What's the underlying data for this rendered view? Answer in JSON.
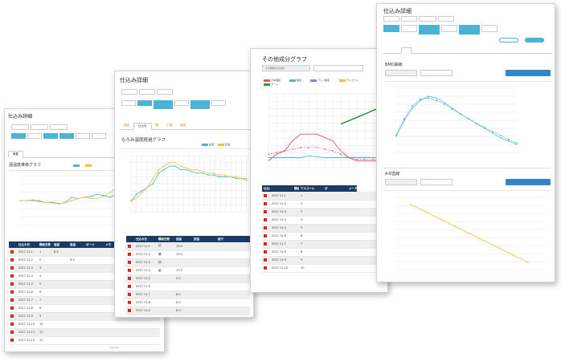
{
  "page_title": "仕込み詳細",
  "screen1": {
    "title": "仕込み詳細",
    "buttons": [
      "",
      "",
      "",
      "",
      "",
      "",
      ""
    ],
    "tabs": [
      "概要",
      "",
      "",
      "",
      ""
    ],
    "chart_title": "酒温度推移グラフ",
    "legend": [
      "",
      ""
    ],
    "table_headers": [
      "",
      "仕込み日",
      "醪経日数",
      "酒温",
      "品温",
      "ボーメ",
      "メモ"
    ],
    "rows": [
      [
        "",
        "2017.11.1",
        "1",
        "6.5",
        "",
        "",
        ""
      ],
      [
        "",
        "2017.11.2",
        "2",
        "",
        "6.5",
        "",
        ""
      ],
      [
        "",
        "2017.11.3",
        "3",
        "",
        "",
        "",
        ""
      ],
      [
        "",
        "2017.11.4",
        "4",
        "",
        "",
        "",
        ""
      ],
      [
        "",
        "2017.11.5",
        "5",
        "",
        "",
        "",
        ""
      ],
      [
        "",
        "2017.11.6",
        "6",
        "",
        "",
        "",
        ""
      ],
      [
        "",
        "2017.11.7",
        "7",
        "",
        "",
        "",
        ""
      ],
      [
        "",
        "2017.11.8",
        "8",
        "",
        "",
        "",
        ""
      ],
      [
        "",
        "2017.11.9",
        "9",
        "",
        "",
        "",
        ""
      ],
      [
        "",
        "2017.11.10",
        "10",
        "",
        "",
        "",
        ""
      ],
      [
        "",
        "2017.11.11",
        "11",
        "",
        "",
        "",
        ""
      ],
      [
        "",
        "2017.11.12",
        "12",
        "",
        "",
        "",
        ""
      ]
    ],
    "footer": "Copyright"
  },
  "screen2": {
    "title": "仕込み詳細",
    "tabs": [
      "経過",
      "仕込み",
      "醪",
      "上槽",
      "製成"
    ],
    "chart_title": "もろみ温度経過グラフ",
    "legend": [
      "品温",
      "室温"
    ],
    "table_headers": [
      "",
      "仕込み日",
      "醪経日数",
      "品温",
      "室温",
      "留子"
    ],
    "rows": [
      [
        "",
        "2017.11.1",
        "初",
        "13.0",
        "",
        ""
      ],
      [
        "",
        "2017.11.2",
        "踊",
        "13.0",
        "",
        ""
      ],
      [
        "",
        "2017.11.3",
        "仲",
        "",
        "",
        ""
      ],
      [
        "",
        "2017.11.4",
        "留",
        "13.5",
        "",
        ""
      ],
      [
        "",
        "2017.11.5",
        "",
        "9.0",
        "",
        ""
      ],
      [
        "",
        "2017.11.6",
        "",
        "",
        "",
        ""
      ],
      [
        "",
        "2017.11.7",
        "",
        "8.5",
        "",
        ""
      ],
      [
        "",
        "2017.11.8",
        "",
        "8.0",
        "",
        ""
      ],
      [
        "",
        "2017.11.9",
        "",
        "8.0",
        "",
        ""
      ]
    ]
  },
  "screen3": {
    "title": "その他成分グラフ",
    "select_label": "その他成分の切替",
    "select_value": "",
    "legend": [
      "日本酒度",
      "酸度",
      "アミノ酸度",
      "アルコール",
      "ボーメ"
    ],
    "table_headers": [
      "仕込み日",
      "",
      "醪経日数",
      "アルコール",
      "ボ",
      "メーター"
    ],
    "rows": [
      [
        "",
        "2017.11.1",
        "",
        "1",
        "",
        "",
        ""
      ],
      [
        "",
        "2017.11.2",
        "",
        "2",
        "",
        "",
        ""
      ],
      [
        "",
        "2017.11.3",
        "",
        "3",
        "",
        "",
        ""
      ],
      [
        "",
        "2017.11.4",
        "",
        "4",
        "",
        "",
        ""
      ],
      [
        "",
        "2017.11.5",
        "",
        "5",
        "",
        "",
        ""
      ],
      [
        "",
        "2017.11.6",
        "",
        "6",
        "",
        "",
        ""
      ],
      [
        "",
        "2017.11.7",
        "",
        "7",
        "",
        "",
        ""
      ],
      [
        "",
        "2017.11.8",
        "",
        "8",
        "",
        "",
        ""
      ],
      [
        "",
        "2017.11.9",
        "",
        "9",
        "",
        "",
        ""
      ],
      [
        "",
        "2017.11.10",
        "",
        "10",
        "",
        "",
        ""
      ]
    ]
  },
  "screen4": {
    "title": "仕込み詳細",
    "section1": "BMD曲線",
    "section2": "A-B直線",
    "action_btn": "",
    "select1": "",
    "select2": ""
  },
  "chart_data": [
    {
      "type": "line",
      "title": "酒温度推移グラフ",
      "series": [
        {
          "values": [
            6,
            6,
            6,
            5.8,
            5.5,
            5.6,
            5.3,
            5.5,
            6.8,
            6.5,
            6.8,
            7,
            7.5,
            7.2,
            6.8,
            7.5,
            8,
            8.5,
            8,
            7.5,
            6.5,
            5.5
          ]
        },
        {
          "values": [
            6,
            6,
            6.2,
            6,
            5.5,
            5.4,
            5.2,
            5.5,
            6,
            6.5,
            6.8,
            6.5,
            6.5,
            7,
            8,
            9,
            9.5,
            8.5,
            8,
            7,
            6,
            5
          ]
        }
      ]
    },
    {
      "type": "line",
      "title": "もろみ温度経過グラフ",
      "series": [
        {
          "name": "品温",
          "values": [
            3,
            5,
            6,
            7,
            8,
            11,
            12,
            13,
            13,
            12,
            12,
            11.5,
            11,
            11,
            10.5,
            10.5,
            10,
            10,
            10,
            9.5,
            9.5,
            9
          ]
        },
        {
          "name": "室温",
          "values": [
            3,
            4,
            5.5,
            7,
            9.5,
            12,
            13,
            14,
            14,
            13,
            12.5,
            12,
            12,
            11.5,
            11,
            11,
            10.5,
            10.5,
            10,
            10,
            9.5,
            9.5
          ]
        }
      ]
    },
    {
      "type": "line",
      "title": "その他成分グラフ",
      "series": [
        {
          "name": "日本酒度",
          "values": [
            0,
            2,
            3,
            6,
            8,
            8,
            8,
            7,
            6,
            3,
            1,
            0,
            0,
            0,
            0
          ]
        },
        {
          "name": "アルコール",
          "values": [
            null,
            null,
            null,
            null,
            null,
            null,
            null,
            null,
            null,
            11,
            12,
            13,
            14,
            15,
            16
          ]
        },
        {
          "name": "酸度",
          "values": [
            1,
            1,
            1,
            1,
            1,
            1.5,
            1.2,
            1,
            1,
            1,
            1,
            1,
            1,
            1,
            1
          ]
        },
        {
          "name": "ボーメ",
          "values": [
            2,
            2.5,
            3,
            3.5,
            4,
            4,
            4,
            3.5,
            3,
            2,
            1,
            0.5,
            0.5,
            0.5,
            0.5
          ]
        }
      ]
    },
    {
      "type": "line",
      "title": "BMD曲線",
      "series": [
        {
          "values": [
            20,
            40,
            55,
            65,
            70,
            68,
            62,
            55,
            48,
            42,
            36,
            30,
            24,
            18,
            14,
            10
          ]
        },
        {
          "values": [
            22,
            42,
            58,
            66,
            68,
            65,
            60,
            54,
            48,
            42,
            36,
            31,
            26,
            21,
            16,
            12
          ]
        }
      ]
    },
    {
      "type": "scatter",
      "title": "A-B直線",
      "series": [
        {
          "x": [
            2,
            4,
            6,
            8,
            10,
            12,
            14,
            16,
            18
          ],
          "y": [
            18,
            16,
            14,
            12,
            10,
            8,
            6,
            4,
            2
          ]
        }
      ]
    }
  ]
}
